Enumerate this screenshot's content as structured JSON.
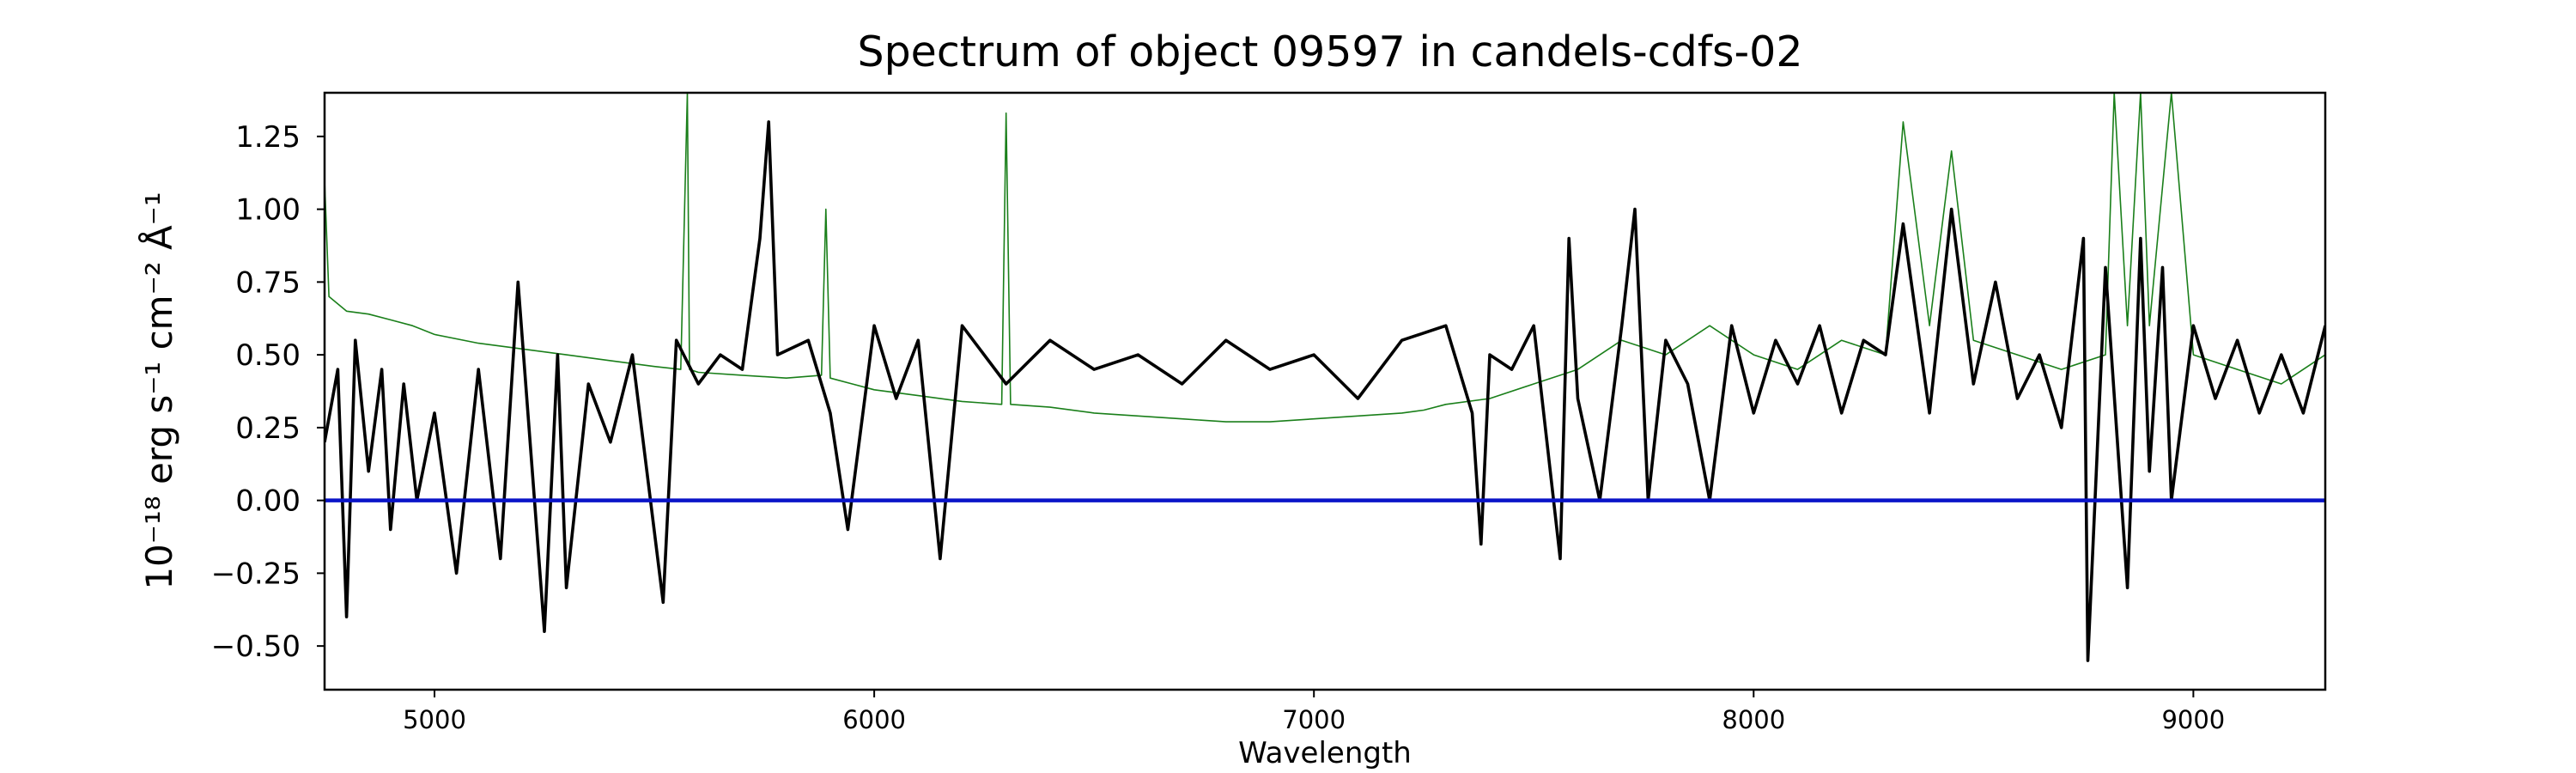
{
  "chart_data": {
    "type": "line",
    "title": "Spectrum of object 09597 in candels-cdfs-02",
    "xlabel": "Wavelength",
    "ylabel": "10⁻¹⁸ erg s⁻¹ cm⁻² Å⁻¹",
    "xlim": [
      4750,
      9300
    ],
    "ylim": [
      -0.65,
      1.4
    ],
    "xticks": [
      5000,
      6000,
      7000,
      8000,
      9000
    ],
    "yticks": [
      -0.5,
      -0.25,
      0.0,
      0.25,
      0.5,
      0.75,
      1.0,
      1.25
    ],
    "ytick_labels": [
      "−0.50",
      "−0.25",
      "0.00",
      "0.25",
      "0.50",
      "0.75",
      "1.00",
      "1.25"
    ],
    "grid": false,
    "series": [
      {
        "role": "noise",
        "color": "#1a7f1a",
        "x": [
          4750,
          4760,
          4800,
          4850,
          4900,
          4950,
          5000,
          5100,
          5200,
          5300,
          5400,
          5500,
          5560,
          5575,
          5580,
          5600,
          5700,
          5800,
          5880,
          5890,
          5900,
          5950,
          6000,
          6100,
          6200,
          6290,
          6300,
          6310,
          6400,
          6500,
          6600,
          6700,
          6800,
          6900,
          7000,
          7100,
          7200,
          7250,
          7300,
          7400,
          7500,
          7600,
          7700,
          7800,
          7900,
          8000,
          8100,
          8200,
          8300,
          8340,
          8400,
          8450,
          8500,
          8600,
          8700,
          8800,
          8820,
          8850,
          8880,
          8900,
          8950,
          9000,
          9100,
          9200,
          9300
        ],
        "values": [
          1.1,
          0.7,
          0.65,
          0.64,
          0.62,
          0.6,
          0.57,
          0.54,
          0.52,
          0.5,
          0.48,
          0.46,
          0.45,
          1.4,
          0.45,
          0.44,
          0.43,
          0.42,
          0.43,
          1.0,
          0.42,
          0.4,
          0.38,
          0.36,
          0.34,
          0.33,
          1.33,
          0.33,
          0.32,
          0.3,
          0.29,
          0.28,
          0.27,
          0.27,
          0.28,
          0.29,
          0.3,
          0.31,
          0.33,
          0.35,
          0.4,
          0.45,
          0.55,
          0.5,
          0.6,
          0.5,
          0.45,
          0.55,
          0.5,
          1.3,
          0.6,
          1.2,
          0.55,
          0.5,
          0.45,
          0.5,
          1.4,
          0.6,
          1.4,
          0.6,
          1.4,
          0.5,
          0.45,
          0.4,
          0.5
        ]
      },
      {
        "role": "flux",
        "color": "#000000",
        "x": [
          4750,
          4780,
          4800,
          4820,
          4850,
          4880,
          4900,
          4930,
          4960,
          5000,
          5050,
          5100,
          5150,
          5190,
          5250,
          5280,
          5300,
          5350,
          5400,
          5450,
          5520,
          5550,
          5600,
          5650,
          5700,
          5740,
          5760,
          5780,
          5850,
          5900,
          5940,
          6000,
          6050,
          6100,
          6150,
          6200,
          6300,
          6400,
          6500,
          6600,
          6700,
          6800,
          6900,
          7000,
          7100,
          7200,
          7300,
          7360,
          7380,
          7400,
          7450,
          7500,
          7560,
          7580,
          7600,
          7650,
          7700,
          7730,
          7760,
          7800,
          7850,
          7900,
          7950,
          8000,
          8050,
          8100,
          8150,
          8200,
          8250,
          8300,
          8340,
          8400,
          8450,
          8500,
          8550,
          8600,
          8650,
          8700,
          8750,
          8760,
          8800,
          8850,
          8880,
          8900,
          8930,
          8950,
          9000,
          9050,
          9100,
          9150,
          9200,
          9250,
          9300
        ],
        "values": [
          0.2,
          0.45,
          -0.4,
          0.55,
          0.1,
          0.45,
          -0.1,
          0.4,
          0.0,
          0.3,
          -0.25,
          0.45,
          -0.2,
          0.75,
          -0.45,
          0.5,
          -0.3,
          0.4,
          0.2,
          0.5,
          -0.35,
          0.55,
          0.4,
          0.5,
          0.45,
          0.9,
          1.3,
          0.5,
          0.55,
          0.3,
          -0.1,
          0.6,
          0.35,
          0.55,
          -0.2,
          0.6,
          0.4,
          0.55,
          0.45,
          0.5,
          0.4,
          0.55,
          0.45,
          0.5,
          0.35,
          0.55,
          0.6,
          0.3,
          -0.15,
          0.5,
          0.45,
          0.6,
          -0.2,
          0.9,
          0.35,
          0.0,
          0.6,
          1.0,
          0.0,
          0.55,
          0.4,
          0.0,
          0.6,
          0.3,
          0.55,
          0.4,
          0.6,
          0.3,
          0.55,
          0.5,
          0.95,
          0.3,
          1.0,
          0.4,
          0.75,
          0.35,
          0.5,
          0.25,
          0.9,
          -0.55,
          0.8,
          -0.3,
          0.9,
          0.1,
          0.8,
          0.0,
          0.6,
          0.35,
          0.55,
          0.3,
          0.5,
          0.3,
          0.6
        ]
      },
      {
        "role": "zero",
        "color": "#0a14c8",
        "x": [
          4750,
          9300
        ],
        "values": [
          0.0,
          0.0
        ]
      }
    ]
  }
}
